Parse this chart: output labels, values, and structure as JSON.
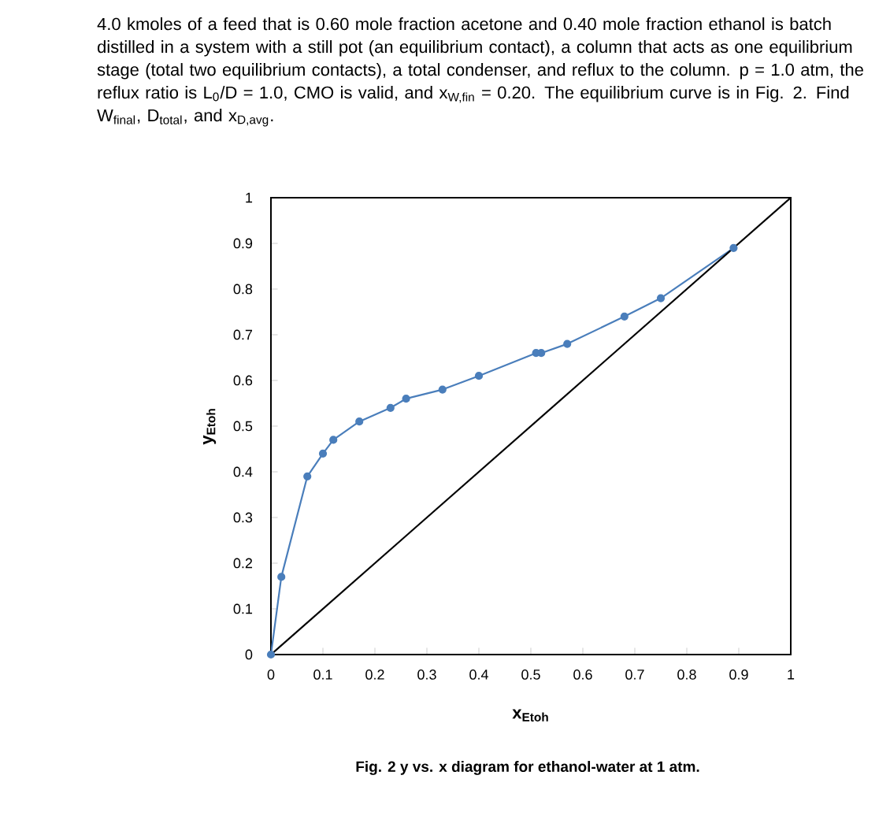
{
  "chart_data": {
    "type": "line",
    "title": "4.0 kmoles of a feed that is 0.60 mole fraction acetone and 0.40 mole fraction ethanol is batch distilled in a system with a still pot (an equilibrium contact), a column that acts as one equilibrium stage (total two equilibrium contacts), a total condenser, and reflux to the column. p = 1.0 atm, the reflux ratio is L$_{0}$/D = 1.0, CMO is valid, and x$_{W,fin}$ = 0.20. The equilibrium curve is in Fig. 2. Find W$_{final}$, D$_{total}$, and x$_{D,avg}$.",
    "xlabel": "x$_{Etoh}$",
    "ylabel": "y$_{Etoh}$",
    "annotations": [
      "Fig. 2 y vs. x diagram for ethanol-water at 1 atm."
    ],
    "xlim": [
      0,
      1
    ],
    "ylim": [
      0,
      1
    ],
    "xticks": [
      0,
      0.1,
      0.2,
      0.3,
      0.4,
      0.5,
      0.6,
      0.7,
      0.8,
      0.9,
      1
    ],
    "yticks": [
      0,
      0.1,
      0.2,
      0.3,
      0.4,
      0.5,
      0.6,
      0.7,
      0.8,
      0.9,
      1
    ],
    "grid": false,
    "marker": "circle",
    "line_style": "solid",
    "series": [
      {
        "color": "#4a7ebb",
        "x": [
          0,
          0.02,
          0.07,
          0.1,
          0.12,
          0.17,
          0.23,
          0.26,
          0.33,
          0.4,
          0.51,
          0.52,
          0.57,
          0.68,
          0.75,
          0.89
        ],
        "values": [
          0,
          0.17,
          0.39,
          0.44,
          0.47,
          0.51,
          0.54,
          0.56,
          0.58,
          0.61,
          0.66,
          0.66,
          0.68,
          0.74,
          0.78,
          0.89
        ]
      },
      {
        "color": "#000000",
        "marker": "none",
        "x": [
          0,
          1
        ],
        "values": [
          0,
          1
        ]
      }
    ]
  }
}
